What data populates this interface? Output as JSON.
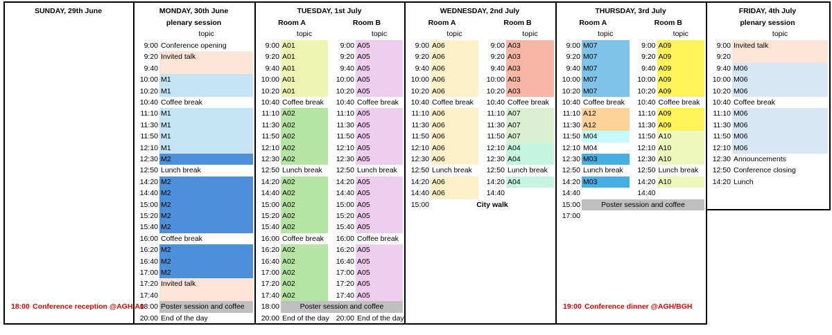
{
  "days": [
    {
      "title": "SUNDAY, 29th June",
      "tracks": [],
      "note": {
        "time": "18:00",
        "label": "Conference reception @AGH/A0"
      }
    },
    {
      "title": "MONDAY, 30th June",
      "tracks": [
        {
          "name": "plenary session",
          "topic": "topic",
          "slots": [
            {
              "time": "9:00",
              "label": "Conference opening"
            },
            {
              "time": "9:20",
              "label": "Invited talk",
              "color": "#fce4d6"
            },
            {
              "time": "9:40",
              "color": "#fce4d6"
            },
            {
              "time": "10:00",
              "label": "M1",
              "color": "#c4e3f4"
            },
            {
              "time": "10:20",
              "label": "M1",
              "color": "#c4e3f4"
            },
            {
              "time": "10:40",
              "label": "Coffee break"
            },
            {
              "time": "11:10",
              "label": "M1",
              "color": "#c4e3f4"
            },
            {
              "time": "11:30",
              "label": "M1",
              "color": "#c4e3f4"
            },
            {
              "time": "11:50",
              "label": "M1",
              "color": "#c4e3f4"
            },
            {
              "time": "12:10",
              "label": "M1",
              "color": "#c4e3f4"
            },
            {
              "time": "12:30",
              "label": "M2",
              "color": "#4d90da"
            },
            {
              "time": "12:50",
              "label": "Lunch break"
            },
            {
              "time": "14:20",
              "label": "M2",
              "color": "#4d90da"
            },
            {
              "time": "14:40",
              "label": "M2",
              "color": "#4d90da"
            },
            {
              "time": "15:00",
              "label": "M2",
              "color": "#4d90da"
            },
            {
              "time": "15:20",
              "label": "M2",
              "color": "#4d90da"
            },
            {
              "time": "15:40",
              "label": "M2",
              "color": "#4d90da"
            },
            {
              "time": "16:00",
              "label": "Coffee break"
            },
            {
              "time": "16:20",
              "label": "M2",
              "color": "#4d90da"
            },
            {
              "time": "16:40",
              "label": "M2",
              "color": "#4d90da"
            },
            {
              "time": "17:00",
              "label": "M2",
              "color": "#4d90da"
            },
            {
              "time": "17:20",
              "label": "Invited talk",
              "color": "#fce4d6"
            },
            {
              "time": "17:40",
              "color": "#fce4d6"
            },
            {
              "time": "18:00",
              "label": "Poster session and coffee",
              "color": "#bfbfbf"
            },
            {
              "time": "20:00",
              "label": "End of the day"
            }
          ]
        }
      ]
    },
    {
      "title": "TUESDAY, 1st July",
      "tracks": [
        {
          "name": "Room A",
          "topic": "topic",
          "slots": [
            {
              "time": "9:00",
              "label": "A01",
              "color": "#eef4b2"
            },
            {
              "time": "9:20",
              "label": "A01",
              "color": "#eef4b2"
            },
            {
              "time": "9:40",
              "label": "A01",
              "color": "#eef4b2"
            },
            {
              "time": "10:00",
              "label": "A01",
              "color": "#eef4b2"
            },
            {
              "time": "10:20",
              "label": "A01",
              "color": "#eef4b2"
            },
            {
              "time": "10:40",
              "label": "Coffee break"
            },
            {
              "time": "11:10",
              "label": "A02",
              "color": "#b6e4a2"
            },
            {
              "time": "11:30",
              "label": "A02",
              "color": "#b6e4a2"
            },
            {
              "time": "11:50",
              "label": "A02",
              "color": "#b6e4a2"
            },
            {
              "time": "12:10",
              "label": "A02",
              "color": "#b6e4a2"
            },
            {
              "time": "12:30",
              "label": "A02",
              "color": "#b6e4a2"
            },
            {
              "time": "12:50",
              "label": "Lunch break"
            },
            {
              "time": "14:20",
              "label": "A02",
              "color": "#b6e4a2"
            },
            {
              "time": "14:40",
              "label": "A02",
              "color": "#b6e4a2"
            },
            {
              "time": "15:00",
              "label": "A02",
              "color": "#b6e4a2"
            },
            {
              "time": "15:20",
              "label": "A02",
              "color": "#b6e4a2"
            },
            {
              "time": "15:40",
              "label": "A02",
              "color": "#b6e4a2"
            },
            {
              "time": "16:00",
              "label": "Coffee break"
            },
            {
              "time": "16:20",
              "label": "A02",
              "color": "#b6e4a2"
            },
            {
              "time": "16:40",
              "label": "A02",
              "color": "#b6e4a2"
            },
            {
              "time": "17:00",
              "label": "A02",
              "color": "#b6e4a2"
            },
            {
              "time": "17:20",
              "label": "A02",
              "color": "#b6e4a2"
            },
            {
              "time": "17:40",
              "label": "A02",
              "color": "#b6e4a2"
            },
            {
              "time": "18:00",
              "label": "Poster session and coffee",
              "color": "#bfbfbf",
              "wide": true
            },
            {
              "time": "20:00",
              "label": "End of the day"
            }
          ]
        },
        {
          "name": "Room B",
          "topic": "topic",
          "slots": [
            {
              "time": "9:00",
              "label": "A05",
              "color": "#efcdef"
            },
            {
              "time": "9:20",
              "label": "A05",
              "color": "#efcdef"
            },
            {
              "time": "9:40",
              "label": "A05",
              "color": "#efcdef"
            },
            {
              "time": "10:00",
              "label": "A05",
              "color": "#efcdef"
            },
            {
              "time": "10:20",
              "label": "A05",
              "color": "#efcdef"
            },
            {
              "time": "10:40",
              "label": "Coffee break"
            },
            {
              "time": "11:10",
              "label": "A05",
              "color": "#efcdef"
            },
            {
              "time": "11:30",
              "label": "A05",
              "color": "#efcdef"
            },
            {
              "time": "11:50",
              "label": "A05",
              "color": "#efcdef"
            },
            {
              "time": "12:10",
              "label": "A05",
              "color": "#efcdef"
            },
            {
              "time": "12:30",
              "label": "A05",
              "color": "#efcdef"
            },
            {
              "time": "12:50",
              "label": "Lunch break"
            },
            {
              "time": "14:20",
              "label": "A05",
              "color": "#efcdef"
            },
            {
              "time": "14:40",
              "label": "A05",
              "color": "#efcdef"
            },
            {
              "time": "15:00",
              "label": "A05",
              "color": "#efcdef"
            },
            {
              "time": "15:20",
              "label": "A05",
              "color": "#efcdef"
            },
            {
              "time": "15:40",
              "label": "A05",
              "color": "#efcdef"
            },
            {
              "time": "16:00",
              "label": "Coffee break"
            },
            {
              "time": "16:20",
              "label": "A05",
              "color": "#efcdef"
            },
            {
              "time": "16:40",
              "label": "A05",
              "color": "#efcdef"
            },
            {
              "time": "17:00",
              "label": "A05",
              "color": "#efcdef"
            },
            {
              "time": "17:20",
              "label": "A05",
              "color": "#efcdef"
            },
            {
              "time": "17:40",
              "label": "A05",
              "color": "#efcdef"
            },
            null,
            {
              "time": "20:00",
              "label": "End of the day"
            }
          ]
        }
      ]
    },
    {
      "title": "WEDNESDAY, 2nd July",
      "tracks": [
        {
          "name": "Room A",
          "topic": "topic",
          "slots": [
            {
              "time": "9:00",
              "label": "A06",
              "color": "#fdf0c8"
            },
            {
              "time": "9:20",
              "label": "A06",
              "color": "#fdf0c8"
            },
            {
              "time": "9:40",
              "label": "A06",
              "color": "#fdf0c8"
            },
            {
              "time": "10:00",
              "label": "A06",
              "color": "#fdf0c8"
            },
            {
              "time": "10:20",
              "label": "A06",
              "color": "#fdf0c8"
            },
            {
              "time": "10:40",
              "label": "Coffee break"
            },
            {
              "time": "11:10",
              "label": "A06",
              "color": "#fdf0c8"
            },
            {
              "time": "11:30",
              "label": "A06",
              "color": "#fdf0c8"
            },
            {
              "time": "11:50",
              "label": "A06",
              "color": "#fdf0c8"
            },
            {
              "time": "12:10",
              "label": "A06",
              "color": "#fdf0c8"
            },
            {
              "time": "12:30",
              "label": "A06",
              "color": "#fdf0c8"
            },
            {
              "time": "12:50",
              "label": "Lunch break"
            },
            {
              "time": "14:20",
              "label": "A06",
              "color": "#fdf0c8"
            },
            {
              "time": "14:40",
              "label": "A06",
              "color": "#fdf0c8"
            },
            {
              "time": "15:00",
              "label": "City walk",
              "wide": true,
              "bold": true
            }
          ]
        },
        {
          "name": "Room B",
          "topic": "topic",
          "slots": [
            {
              "time": "9:00",
              "label": "A03",
              "color": "#f8b7a6"
            },
            {
              "time": "9:20",
              "label": "A03",
              "color": "#f8b7a6"
            },
            {
              "time": "9:40",
              "label": "A03",
              "color": "#f8b7a6"
            },
            {
              "time": "10:00",
              "label": "A03",
              "color": "#f8b7a6"
            },
            {
              "time": "10:20",
              "label": "A03",
              "color": "#f8b7a6"
            },
            {
              "time": "10:40",
              "label": "Coffee break"
            },
            {
              "time": "11:10",
              "label": "A07",
              "color": "#d9efd0"
            },
            {
              "time": "11:30",
              "label": "A07",
              "color": "#d9efd0"
            },
            {
              "time": "11:50",
              "label": "A07",
              "color": "#d9efd0"
            },
            {
              "time": "12:10",
              "label": "A04",
              "color": "#c4f5e0"
            },
            {
              "time": "12:30",
              "label": "A04",
              "color": "#c4f5e0"
            },
            {
              "time": "12:50",
              "label": "Lunch break"
            },
            {
              "time": "14:20",
              "label": "A04",
              "color": "#c4f5e0"
            },
            {
              "time": "14:40"
            }
          ]
        }
      ]
    },
    {
      "title": "THURSDAY, 3rd July",
      "tracks": [
        {
          "name": "Room A",
          "topic": "topic",
          "slots": [
            {
              "time": "9:00",
              "label": "M07",
              "color": "#7dc4e8"
            },
            {
              "time": "9:20",
              "label": "M07",
              "color": "#7dc4e8"
            },
            {
              "time": "9:40",
              "label": "M07",
              "color": "#7dc4e8"
            },
            {
              "time": "10:00",
              "label": "M07",
              "color": "#7dc4e8"
            },
            {
              "time": "10:20",
              "label": "M07",
              "color": "#7dc4e8"
            },
            {
              "time": "10:40",
              "label": "Coffee break"
            },
            {
              "time": "11:10",
              "label": "A12",
              "color": "#fdd29b"
            },
            {
              "time": "11:30",
              "label": "A12",
              "color": "#fdd29b"
            },
            {
              "time": "11:50",
              "label": "M04",
              "color": "#c7fbfb"
            },
            {
              "time": "12:10",
              "label": "M04"
            },
            {
              "time": "12:30",
              "label": "M03",
              "color": "#46aee0"
            },
            {
              "time": "12:50",
              "label": "Lunch break"
            },
            {
              "time": "14:20",
              "label": "M03",
              "color": "#46aee0"
            },
            {
              "time": "14:40"
            },
            {
              "time": "15:00",
              "label": "Poster session and coffee",
              "color": "#bfbfbf",
              "wide": true
            },
            {
              "time": "17:00"
            }
          ]
        },
        {
          "name": "Room B",
          "topic": "topic",
          "slots": [
            {
              "time": "9:00",
              "label": "A09",
              "color": "#fff35c"
            },
            {
              "time": "9:20",
              "label": "A09",
              "color": "#fff35c"
            },
            {
              "time": "9:40",
              "label": "A09",
              "color": "#fff35c"
            },
            {
              "time": "10:00",
              "label": "A09",
              "color": "#fff35c"
            },
            {
              "time": "10:20",
              "label": "A09",
              "color": "#fff35c"
            },
            {
              "time": "10:40",
              "label": "Coffee break"
            },
            {
              "time": "11:10",
              "label": "A09",
              "color": "#fff35c"
            },
            {
              "time": "11:30",
              "label": "A09",
              "color": "#fff35c"
            },
            {
              "time": "11:50",
              "label": "A10",
              "color": "#eff8bc"
            },
            {
              "time": "12:10",
              "label": "A10",
              "color": "#eff8bc"
            },
            {
              "time": "12:30",
              "label": "A10",
              "color": "#eff8bc"
            },
            {
              "time": "12:50",
              "label": "Lunch break"
            },
            {
              "time": "14:20",
              "label": "A10",
              "color": "#eff8bc"
            },
            {
              "time": "14:40"
            }
          ]
        }
      ],
      "note": {
        "time": "19:00",
        "label": "Conference dinner @AGH/BGH"
      }
    },
    {
      "title": "FRIDAY, 4th July",
      "tracks": [
        {
          "name": "plenary session",
          "topic": "topic",
          "slots": [
            {
              "time": "9:00",
              "label": "Invited talk",
              "color": "#fce4d6"
            },
            {
              "time": "9:20",
              "color": "#fce4d6"
            },
            {
              "time": "9:40",
              "label": "M06",
              "color": "#d8e7f6"
            },
            {
              "time": "10:00",
              "label": "M06",
              "color": "#d8e7f6"
            },
            {
              "time": "10:20",
              "label": "M06",
              "color": "#d8e7f6"
            },
            {
              "time": "10:40",
              "label": "Coffee break"
            },
            {
              "time": "11:10",
              "label": "M06",
              "color": "#d8e7f6"
            },
            {
              "time": "11:30",
              "label": "M06",
              "color": "#d8e7f6"
            },
            {
              "time": "11:50",
              "label": "M06",
              "color": "#d8e7f6"
            },
            {
              "time": "12:10",
              "label": "M06",
              "color": "#d8e7f6"
            },
            {
              "time": "12:30",
              "label": "Announcements"
            },
            {
              "time": "12:50",
              "label": "Conference closing"
            },
            {
              "time": "14:20",
              "label": "Lunch"
            }
          ]
        }
      ]
    }
  ]
}
